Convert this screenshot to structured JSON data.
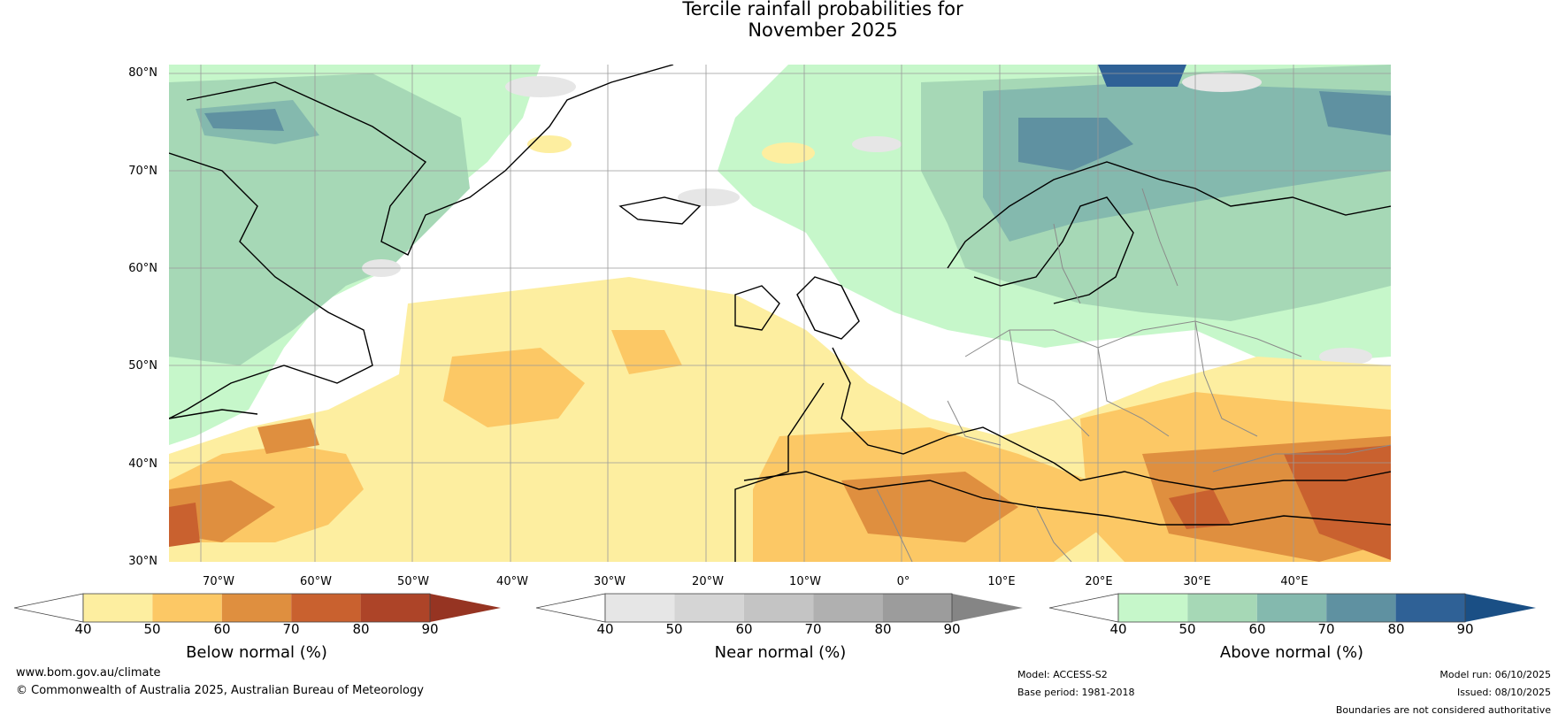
{
  "title_line1": "Tercile rainfall probabilities for",
  "title_line2": "November 2025",
  "lat_labels": [
    "80°N",
    "70°N",
    "60°N",
    "50°N",
    "40°N",
    "30°N"
  ],
  "lon_labels": [
    "70°W",
    "60°W",
    "50°W",
    "40°W",
    "30°W",
    "20°W",
    "10°W",
    "0°",
    "10°E",
    "20°E",
    "30°E",
    "40°E"
  ],
  "colorbars": [
    {
      "title": "Below normal (%)",
      "ticks": [
        "40",
        "50",
        "60",
        "70",
        "80",
        "90"
      ],
      "colors": [
        "#fdeea0",
        "#fcc865",
        "#df8f3f",
        "#c9612f",
        "#ad4428"
      ],
      "low_color": "#ffffff",
      "high_color": "#963422"
    },
    {
      "title": "Near normal (%)",
      "ticks": [
        "40",
        "50",
        "60",
        "70",
        "80",
        "90"
      ],
      "colors": [
        "#e6e6e6",
        "#d5d5d5",
        "#c4c4c4",
        "#b0b0b0",
        "#9c9c9c"
      ],
      "low_color": "#ffffff",
      "high_color": "#858585"
    },
    {
      "title": "Above normal (%)",
      "ticks": [
        "40",
        "50",
        "60",
        "70",
        "80",
        "90"
      ],
      "colors": [
        "#c6f7ca",
        "#a6d8b6",
        "#84b9ae",
        "#5f91a1",
        "#2f6196"
      ],
      "low_color": "#ffffff",
      "high_color": "#1a4f85"
    }
  ],
  "footer": {
    "website": "www.bom.gov.au/climate",
    "copyright": "© Commonwealth of Australia 2025, Australian Bureau of Meteorology",
    "model": "Model: ACCESS-S2",
    "base_period": "Base period: 1981-2018",
    "model_run": "Model run: 06/10/2025",
    "issued": "Issued: 08/10/2025",
    "disclaimer": "Boundaries are not considered authoritative"
  }
}
